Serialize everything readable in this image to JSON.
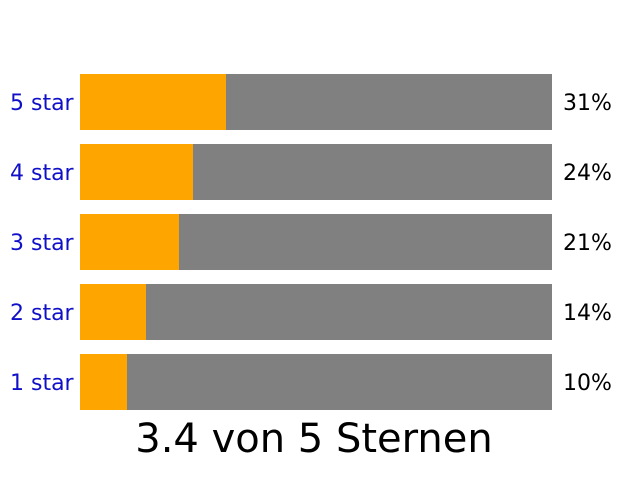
{
  "rating_summary": {
    "text": "3.4 von 5 Sternen"
  },
  "colors": {
    "filled": "#ffa500",
    "track": "#808080",
    "label_link": "#1010c8",
    "text": "#000000"
  },
  "rows": [
    {
      "label": "5 star",
      "percent_text": "31%",
      "fraction": 0.31
    },
    {
      "label": "4 star",
      "percent_text": "24%",
      "fraction": 0.24
    },
    {
      "label": "3 star",
      "percent_text": "21%",
      "fraction": 0.21
    },
    {
      "label": "2 star",
      "percent_text": "14%",
      "fraction": 0.14
    },
    {
      "label": "1 star",
      "percent_text": "10%",
      "fraction": 0.1
    }
  ]
}
